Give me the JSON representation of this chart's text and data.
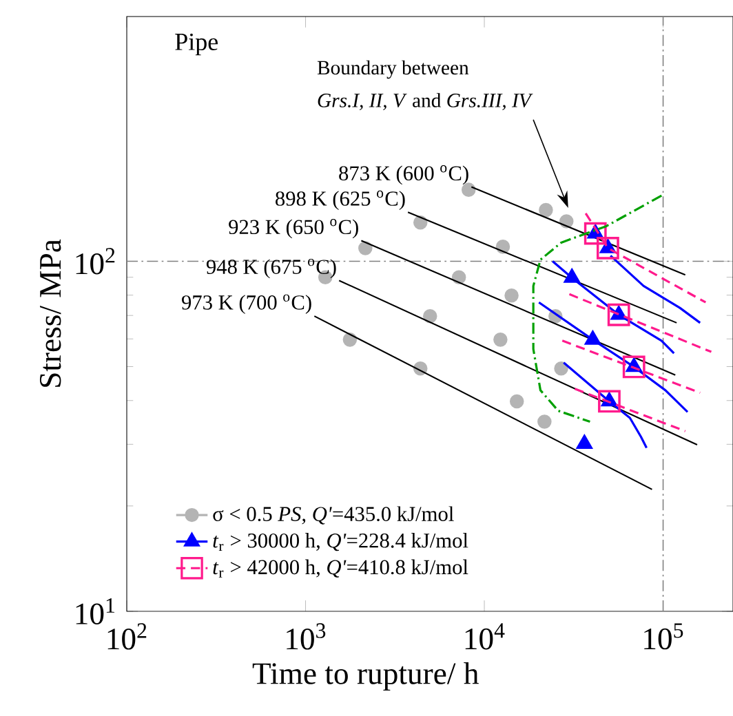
{
  "chart_data": {
    "type": "line",
    "log": "xy",
    "xlabel": "Time to rupture/ h",
    "ylabel": "Stress/ MPa",
    "xlim": [
      100,
      246000
    ],
    "ylim": [
      10,
      500
    ],
    "xticks": [
      {
        "value": 100,
        "label": "10$^{2}$"
      },
      {
        "value": 1000,
        "label": "10$^{3}$"
      },
      {
        "value": 10000,
        "label": "10$^{4}$"
      },
      {
        "value": 100000,
        "label": "10$^{5}$"
      }
    ],
    "yticks": [
      {
        "value": 10,
        "label": "10$^{1}$"
      },
      {
        "value": 100,
        "label": "10$^{2}$"
      }
    ],
    "legend": "bottom left",
    "grid": false,
    "annotations": [
      "Pipe",
      "Boundary between",
      "*Grs.I, II, V* and *Grs.III, IV*"
    ],
    "ref_lines": [
      {
        "axis": "y",
        "value": 100,
        "color": "#808080",
        "line_style": "dashdot"
      },
      {
        "axis": "x",
        "value": 100000,
        "color": "#808080",
        "line_style": "dashdot"
      }
    ],
    "series": [
      {
        "type": "scatter",
        "name": "σ < 0.5 *PS*, *Q'*=435.0 kJ/mol",
        "color": "#b4b4b4",
        "marker": "circle",
        "x": [
          8170,
          22100,
          28800,
          4390,
          2160,
          12700,
          1290,
          7210,
          14200,
          4970,
          25000,
          1770,
          12300,
          4390,
          26900,
          15200,
          21700
        ],
        "values": [
          160,
          140,
          130,
          129,
          109,
          110,
          90,
          90,
          79.8,
          69.7,
          69.7,
          59.7,
          59.7,
          49.4,
          49.4,
          39.8,
          34.8
        ]
      },
      {
        "name": "873 K (600 $^{o}$C)",
        "color": "#000000",
        "line_style": "solid",
        "x": [
          8470,
          133000
        ],
        "values": [
          163,
          91.4
        ]
      },
      {
        "name": "898 K (625 $^{o}$C)",
        "color": "#000000",
        "line_style": "solid",
        "x": [
          3740,
          119000
        ],
        "values": [
          138,
          66.7
        ]
      },
      {
        "name": "923 K (650 $^{o}$C)",
        "color": "#000000",
        "line_style": "solid",
        "x": [
          2050,
          117000
        ],
        "values": [
          114.5,
          47.3
        ]
      },
      {
        "name": "948 K (675 $^{o}$C)",
        "color": "#000000",
        "line_style": "solid",
        "x": [
          1540,
          155000
        ],
        "values": [
          88.1,
          29.9
        ]
      },
      {
        "name": "973 K (700 $^{o}$C)",
        "color": "#000000",
        "line_style": "solid",
        "x": [
          1120,
          86700
        ],
        "values": [
          69.7,
          22.3
        ]
      },
      {
        "color": "#0000ff",
        "line_style": "solid",
        "x": [
          50800,
          77800,
          124000,
          161000
        ],
        "values": [
          103.7,
          85,
          73.6,
          66.7
        ]
      },
      {
        "color": "#0000ff",
        "line_style": "solid",
        "x": [
          24100,
          30900,
          56500,
          97900,
          115000
        ],
        "values": [
          100,
          89.7,
          70.3,
          59.3,
          54.6
        ]
      },
      {
        "color": "#0000ff",
        "line_style": "solid",
        "x": [
          20200,
          40400,
          68700,
          103000,
          137000
        ],
        "values": [
          76.3,
          59.7,
          49.9,
          42.8,
          37.1
        ]
      },
      {
        "color": "#0000ff",
        "line_style": "solid",
        "x": [
          27800,
          50000,
          65200,
          75200,
          80800
        ],
        "values": [
          51.3,
          39.8,
          35.7,
          31.5,
          29.3
        ]
      },
      {
        "type": "scatter",
        "name": "*t*$_{r}$ > 30000 h, *Q'*=228.4 kJ/mol",
        "color": "#0000ff",
        "marker": "triangle",
        "x": [
          41800,
          49100,
          30900,
          56500,
          40400,
          68700,
          50000,
          36300
        ],
        "values": [
          120,
          109,
          89.7,
          70.3,
          59.7,
          49.9,
          39.8,
          30.1
        ]
      },
      {
        "color": "#ff1a8c",
        "line_style": "dashed",
        "x": [
          36900,
          49100,
          173000
        ],
        "values": [
          137,
          109,
          76.3
        ]
      },
      {
        "color": "#ff1a8c",
        "line_style": "dashed",
        "x": [
          29900,
          186000
        ],
        "values": [
          80.5,
          55.1
        ]
      },
      {
        "color": "#ff1a8c",
        "line_style": "dashed",
        "x": [
          27300,
          161000
        ],
        "values": [
          59.3,
          42.1
        ]
      },
      {
        "color": "#ff1a8c",
        "line_style": "dashed",
        "x": [
          32100,
          133000
        ],
        "values": [
          43.2,
          32.7
        ]
      },
      {
        "type": "scatter",
        "name": "*t*$_{r}$ > 42000 h, *Q'*=410.8 kJ/mol",
        "color": "#ff1a8c",
        "marker": "square",
        "x": [
          41800,
          49100,
          56500,
          68700,
          50000
        ],
        "values": [
          120,
          109,
          70.3,
          49.9,
          39.8
        ]
      },
      {
        "color": "#00a000",
        "line_style": "dashdot",
        "x": [
          98000,
          48200,
          26900,
          20600,
          18800,
          18800,
          20600,
          25900,
          39000
        ],
        "values": [
          154,
          126,
          113,
          101,
          85,
          56.1,
          42.8,
          37.4,
          34.8
        ]
      }
    ]
  }
}
